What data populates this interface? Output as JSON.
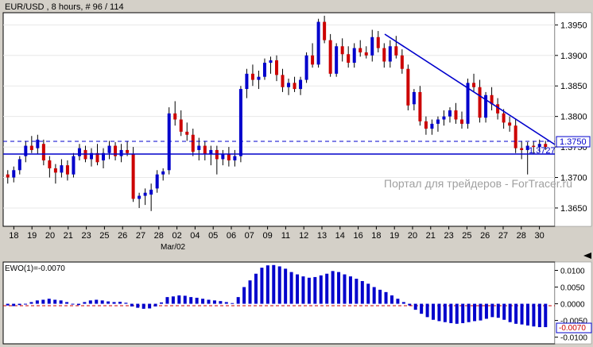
{
  "main_chart": {
    "header": "EUR/USD , 8 hours, # 96 / 114",
    "price_ticks": [
      "1.3950",
      "1.3900",
      "1.3850",
      "1.3800",
      "1.3750",
      "1.3700",
      "1.3650"
    ],
    "current_price_label": "1.3750",
    "support_label": "1.3727",
    "watermark": "Портал для трейдеров - ForTracer.ru",
    "date_labels": [
      "18",
      "19",
      "20",
      "21",
      "23",
      "25",
      "26",
      "27",
      "28",
      "02",
      "04",
      "05",
      "06",
      "07",
      "09",
      "11",
      "12",
      "13",
      "14",
      "16",
      "18",
      "19",
      "20",
      "21",
      "23",
      "25",
      "26",
      "27",
      "28",
      "30"
    ],
    "month_label": "Mar/02",
    "colors": {
      "up": "#0000cc",
      "down": "#cc0000",
      "lines": "#0000cc"
    }
  },
  "indicator": {
    "header": "EWO(1)=-0.0070",
    "ticks": [
      "0.0100",
      "0.0050",
      "0.0000",
      "-0.0050",
      "-0.0100"
    ],
    "current_label": "-0.0070",
    "zero_line_color": "#cc0000",
    "bar_color": "#0000cc"
  },
  "chart_data": [
    {
      "type": "candlestick",
      "title": "EUR/USD , 8 hours, # 96 / 114",
      "ylim": [
        1.362,
        1.397
      ],
      "x": [
        "18",
        "19",
        "20",
        "21",
        "23",
        "25",
        "26",
        "27",
        "28",
        "02",
        "04",
        "05",
        "06",
        "07",
        "09",
        "11",
        "12",
        "13",
        "14",
        "16",
        "18",
        "19",
        "20",
        "21",
        "23",
        "25",
        "26",
        "27",
        "28",
        "30"
      ],
      "ohlc": [
        [
          1.3705,
          1.3712,
          1.369,
          1.37
        ],
        [
          1.37,
          1.3718,
          1.3692,
          1.3712
        ],
        [
          1.3712,
          1.3735,
          1.3705,
          1.373
        ],
        [
          1.3735,
          1.376,
          1.3725,
          1.3752
        ],
        [
          1.3752,
          1.3768,
          1.374,
          1.3745
        ],
        [
          1.3748,
          1.377,
          1.3738,
          1.3762
        ],
        [
          1.3755,
          1.3762,
          1.372,
          1.3728
        ],
        [
          1.3728,
          1.3735,
          1.37,
          1.3715
        ],
        [
          1.3715,
          1.3722,
          1.369,
          1.3708
        ],
        [
          1.3708,
          1.373,
          1.37,
          1.372
        ],
        [
          1.372,
          1.3728,
          1.3695,
          1.3705
        ],
        [
          1.3705,
          1.374,
          1.37,
          1.3735
        ],
        [
          1.3735,
          1.3755,
          1.3728,
          1.3748
        ],
        [
          1.3745,
          1.3752,
          1.3725,
          1.373
        ],
        [
          1.373,
          1.3748,
          1.3718,
          1.374
        ],
        [
          1.374,
          1.3755,
          1.372,
          1.3725
        ],
        [
          1.3728,
          1.3748,
          1.3715,
          1.374
        ],
        [
          1.374,
          1.376,
          1.373,
          1.3752
        ],
        [
          1.3752,
          1.3758,
          1.3728,
          1.3735
        ],
        [
          1.3735,
          1.3755,
          1.3725,
          1.3745
        ],
        [
          1.3745,
          1.376,
          1.3735,
          1.374
        ],
        [
          1.3738,
          1.375,
          1.366,
          1.3665
        ],
        [
          1.3665,
          1.3675,
          1.365,
          1.367
        ],
        [
          1.367,
          1.3682,
          1.3655,
          1.3675
        ],
        [
          1.3672,
          1.369,
          1.3645,
          1.368
        ],
        [
          1.3682,
          1.3712,
          1.3675,
          1.3705
        ],
        [
          1.3705,
          1.3715,
          1.3695,
          1.371
        ],
        [
          1.3712,
          1.3815,
          1.3705,
          1.3805
        ],
        [
          1.3805,
          1.3825,
          1.3785,
          1.3795
        ],
        [
          1.3795,
          1.381,
          1.3768,
          1.3775
        ],
        [
          1.3775,
          1.379,
          1.376,
          1.377
        ],
        [
          1.377,
          1.378,
          1.3735,
          1.3742
        ],
        [
          1.3745,
          1.3765,
          1.3728,
          1.3752
        ],
        [
          1.3752,
          1.376,
          1.3728,
          1.3738
        ],
        [
          1.3738,
          1.3752,
          1.372,
          1.3745
        ],
        [
          1.3745,
          1.3752,
          1.3705,
          1.373
        ],
        [
          1.373,
          1.3745,
          1.372,
          1.3738
        ],
        [
          1.3738,
          1.375,
          1.3718,
          1.3728
        ],
        [
          1.3728,
          1.3745,
          1.3718,
          1.3735
        ],
        [
          1.3735,
          1.385,
          1.3725,
          1.3845
        ],
        [
          1.3845,
          1.3878,
          1.383,
          1.387
        ],
        [
          1.387,
          1.3885,
          1.385,
          1.386
        ],
        [
          1.386,
          1.3875,
          1.3845,
          1.3865
        ],
        [
          1.3865,
          1.3895,
          1.386,
          1.3888
        ],
        [
          1.3888,
          1.3898,
          1.387,
          1.3892
        ],
        [
          1.3892,
          1.39,
          1.3858,
          1.3868
        ],
        [
          1.3868,
          1.3878,
          1.384,
          1.3848
        ],
        [
          1.3848,
          1.3862,
          1.3835,
          1.3855
        ],
        [
          1.3855,
          1.3865,
          1.384,
          1.3845
        ],
        [
          1.3845,
          1.3865,
          1.3835,
          1.386
        ],
        [
          1.386,
          1.3905,
          1.3855,
          1.39
        ],
        [
          1.39,
          1.392,
          1.388,
          1.3885
        ],
        [
          1.3885,
          1.396,
          1.388,
          1.3955
        ],
        [
          1.3955,
          1.3965,
          1.392,
          1.3925
        ],
        [
          1.3925,
          1.3935,
          1.3865,
          1.387
        ],
        [
          1.387,
          1.392,
          1.3865,
          1.3915
        ],
        [
          1.3915,
          1.3928,
          1.389,
          1.3902
        ],
        [
          1.3902,
          1.3915,
          1.388,
          1.3888
        ],
        [
          1.3888,
          1.392,
          1.388,
          1.3912
        ],
        [
          1.3912,
          1.3925,
          1.3898,
          1.3905
        ],
        [
          1.3905,
          1.3915,
          1.3895,
          1.39
        ],
        [
          1.39,
          1.3942,
          1.389,
          1.393
        ],
        [
          1.393,
          1.394,
          1.3905,
          1.3912
        ],
        [
          1.3912,
          1.392,
          1.388,
          1.389
        ],
        [
          1.389,
          1.3925,
          1.388,
          1.3915
        ],
        [
          1.3915,
          1.3932,
          1.3895,
          1.39
        ],
        [
          1.39,
          1.391,
          1.387,
          1.3878
        ],
        [
          1.3878,
          1.3885,
          1.381,
          1.3818
        ],
        [
          1.382,
          1.3845,
          1.381,
          1.384
        ],
        [
          1.384,
          1.385,
          1.3785,
          1.3792
        ],
        [
          1.3792,
          1.38,
          1.377,
          1.378
        ],
        [
          1.378,
          1.3795,
          1.377,
          1.3788
        ],
        [
          1.3788,
          1.38,
          1.3775,
          1.3795
        ],
        [
          1.3795,
          1.381,
          1.3785,
          1.38
        ],
        [
          1.38,
          1.3815,
          1.379,
          1.381
        ],
        [
          1.381,
          1.3822,
          1.3788,
          1.3795
        ],
        [
          1.3795,
          1.3808,
          1.378,
          1.3788
        ],
        [
          1.3788,
          1.3862,
          1.378,
          1.3855
        ],
        [
          1.3855,
          1.387,
          1.384,
          1.3848
        ],
        [
          1.3848,
          1.386,
          1.379,
          1.3798
        ],
        [
          1.3798,
          1.384,
          1.379,
          1.3835
        ],
        [
          1.3835,
          1.3848,
          1.381,
          1.382
        ],
        [
          1.382,
          1.383,
          1.3795,
          1.3805
        ],
        [
          1.3805,
          1.3812,
          1.378,
          1.379
        ],
        [
          1.379,
          1.38,
          1.3775,
          1.3785
        ],
        [
          1.3785,
          1.3795,
          1.374,
          1.3748
        ],
        [
          1.3748,
          1.376,
          1.373,
          1.3745
        ],
        [
          1.3745,
          1.3758,
          1.3705,
          1.3752
        ],
        [
          1.3752,
          1.376,
          1.3738,
          1.375
        ],
        [
          1.375,
          1.3762,
          1.3742,
          1.3755
        ],
        [
          1.3755,
          1.376,
          1.3745,
          1.375
        ]
      ],
      "trend_lines": [
        {
          "name": "resistance",
          "from": [
            1.394
          ],
          "to": [
            1.375
          ]
        },
        {
          "name": "support",
          "value": 1.3727
        }
      ],
      "dashed_level": 1.375
    },
    {
      "type": "bar",
      "title": "EWO(1)=-0.0070",
      "ylim": [
        -0.012,
        0.0125
      ],
      "values": [
        -0.0005,
        -0.0007,
        -0.0004,
        0.0,
        0.0005,
        0.001,
        0.0012,
        0.0015,
        0.0012,
        0.001,
        0.0005,
        -0.0002,
        -0.0004,
        0.0005,
        0.001,
        0.0012,
        0.001,
        0.0007,
        0.0005,
        0.0006,
        0.0003,
        -0.0008,
        -0.0012,
        -0.0015,
        -0.0014,
        -0.0008,
        0.0004,
        0.002,
        0.0022,
        0.0025,
        0.0024,
        0.002,
        0.0018,
        0.0015,
        0.0012,
        0.001,
        0.0008,
        0.0005,
        0.0002,
        0.002,
        0.005,
        0.007,
        0.009,
        0.0108,
        0.0115,
        0.0116,
        0.0112,
        0.0105,
        0.0095,
        0.0088,
        0.0082,
        0.0078,
        0.008,
        0.0085,
        0.009,
        0.0098,
        0.0095,
        0.0088,
        0.0082,
        0.0075,
        0.0068,
        0.006,
        0.005,
        0.0042,
        0.0035,
        0.0025,
        0.0015,
        0.0005,
        -0.0005,
        -0.0018,
        -0.003,
        -0.004,
        -0.0048,
        -0.0052,
        -0.0055,
        -0.0058,
        -0.006,
        -0.0058,
        -0.0055,
        -0.0052,
        -0.005,
        -0.0045,
        -0.004,
        -0.0042,
        -0.0048,
        -0.0055,
        -0.006,
        -0.0062,
        -0.0065,
        -0.0068,
        -0.007,
        -0.007
      ]
    }
  ]
}
